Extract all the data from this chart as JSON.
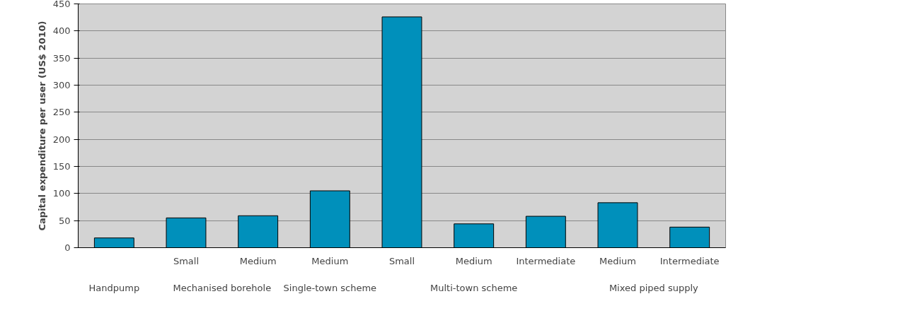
{
  "chart_data": {
    "type": "bar",
    "ylabel": "Capital expenditure per user (US$ 2010)",
    "categories": [
      null,
      "Small",
      "Medium",
      "Medium",
      "Small",
      "Medium",
      "Intermediate",
      "Medium",
      "Intermediate"
    ],
    "values": [
      18,
      55,
      59,
      105,
      426,
      44,
      58,
      83,
      38
    ],
    "color": "#0090bb",
    "ylim": [
      0,
      450
    ],
    "yticks": [
      0,
      50,
      100,
      150,
      200,
      250,
      300,
      350,
      400,
      450
    ],
    "grid": "y",
    "annotations": [
      "Handpump",
      "Mechanised borehole",
      "Single-town scheme",
      "Multi-town scheme",
      "Mixed piped supply"
    ]
  }
}
